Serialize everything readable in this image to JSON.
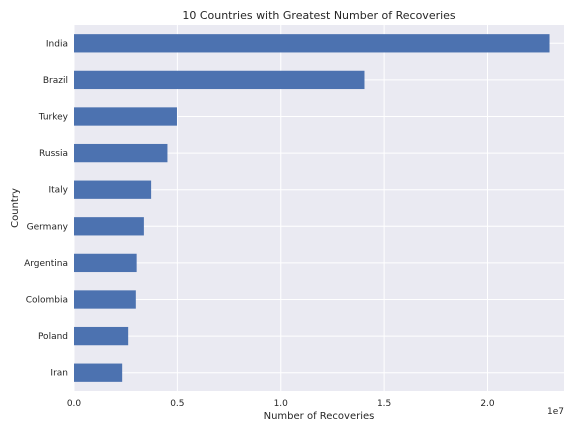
{
  "chart_data": {
    "type": "bar",
    "orientation": "horizontal",
    "title": "10 Countries with Greatest Number of Recoveries",
    "xlabel": "Number of Recoveries",
    "ylabel": "Country",
    "offset_label": "1e7",
    "categories": [
      "India",
      "Brazil",
      "Turkey",
      "Russia",
      "Italy",
      "Germany",
      "Argentina",
      "Colombia",
      "Poland",
      "Iran"
    ],
    "values": [
      23000000,
      14050000,
      4980000,
      4520000,
      3730000,
      3380000,
      3030000,
      2990000,
      2620000,
      2330000
    ],
    "xlim": [
      0,
      23700000
    ],
    "xticks": [
      0,
      5000000,
      10000000,
      15000000,
      20000000
    ],
    "xtick_labels": [
      "0.0",
      "0.5",
      "1.0",
      "1.5",
      "2.0"
    ],
    "bar_color": "#4c72b0",
    "background_color": "#eaeaf2",
    "grid": true,
    "legend": false
  }
}
